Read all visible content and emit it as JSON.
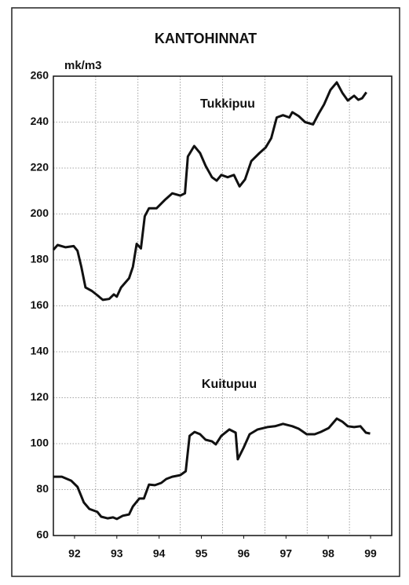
{
  "chart_data": {
    "type": "line",
    "title": "KANTOHINNAT",
    "y_label": "mk/m3",
    "xlim": [
      1992,
      2000
    ],
    "xticks": [
      {
        "value": 1992.5,
        "label": "92"
      },
      {
        "value": 1993.5,
        "label": "93"
      },
      {
        "value": 1994.5,
        "label": "94"
      },
      {
        "value": 1995.5,
        "label": "95"
      },
      {
        "value": 1996.5,
        "label": "96"
      },
      {
        "value": 1997.5,
        "label": "97"
      },
      {
        "value": 1998.5,
        "label": "98"
      },
      {
        "value": 1999.5,
        "label": "99"
      }
    ],
    "ylim": [
      60,
      260
    ],
    "yticks": [
      60,
      80,
      100,
      120,
      140,
      160,
      180,
      200,
      220,
      240,
      260
    ],
    "grid": true,
    "series": [
      {
        "name": "Tukkipuu",
        "color": "#111111",
        "x": [
          1992.0,
          1992.1,
          1992.29,
          1992.48,
          1992.57,
          1992.66,
          1992.76,
          1992.91,
          1993.04,
          1993.17,
          1993.32,
          1993.43,
          1993.5,
          1993.6,
          1993.79,
          1993.88,
          1993.97,
          1994.07,
          1994.16,
          1994.26,
          1994.44,
          1994.63,
          1994.81,
          1995.0,
          1995.11,
          1995.18,
          1995.33,
          1995.47,
          1995.6,
          1995.75,
          1995.86,
          1995.97,
          1996.12,
          1996.27,
          1996.4,
          1996.53,
          1996.68,
          1996.87,
          1997.02,
          1997.15,
          1997.28,
          1997.43,
          1997.58,
          1997.65,
          1997.8,
          1997.95,
          1998.14,
          1998.27,
          1998.4,
          1998.55,
          1998.7,
          1998.83,
          1998.96,
          1999.11,
          1999.21,
          1999.3,
          1999.4
        ],
        "values": [
          184.4,
          186.5,
          185.5,
          186,
          184,
          177,
          168,
          166.5,
          164.6,
          162.6,
          163,
          165,
          164,
          168,
          172,
          177,
          187,
          185,
          199,
          202.5,
          202.5,
          206,
          209,
          208,
          209,
          225,
          229.6,
          226.5,
          221,
          216,
          214.5,
          217,
          216,
          217,
          212,
          215,
          223,
          226.5,
          229,
          233,
          242,
          243,
          242,
          244.3,
          242.6,
          240,
          239,
          243.6,
          247.7,
          254,
          257.3,
          252.8,
          249.4,
          251.5,
          249.7,
          250.4,
          253
        ]
      },
      {
        "name": "Kuitupuu",
        "color": "#111111",
        "x": [
          1992.0,
          1992.2,
          1992.42,
          1992.57,
          1992.72,
          1992.85,
          1993.04,
          1993.13,
          1993.28,
          1993.41,
          1993.5,
          1993.64,
          1993.79,
          1993.88,
          1994.03,
          1994.14,
          1994.26,
          1994.4,
          1994.55,
          1994.67,
          1994.81,
          1995.0,
          1995.13,
          1995.22,
          1995.34,
          1995.47,
          1995.6,
          1995.75,
          1995.84,
          1995.97,
          1996.16,
          1996.31,
          1996.36,
          1996.5,
          1996.64,
          1996.83,
          1997.06,
          1997.24,
          1997.43,
          1997.65,
          1997.8,
          1997.99,
          1998.18,
          1998.32,
          1998.51,
          1998.7,
          1998.83,
          1998.96,
          1999.11,
          1999.26,
          1999.39,
          1999.49
        ],
        "values": [
          85.6,
          85.6,
          83.9,
          81.2,
          74.4,
          71.6,
          70.3,
          68.2,
          67.5,
          67.9,
          67.2,
          68.6,
          69.2,
          72.7,
          76.1,
          76.1,
          82.2,
          81.9,
          82.9,
          84.6,
          85.6,
          86.3,
          88,
          103.4,
          105.1,
          104.1,
          101.7,
          101,
          99.7,
          103.4,
          106.2,
          104.8,
          93.2,
          98.3,
          104.1,
          106.2,
          107.2,
          107.6,
          108.6,
          107.6,
          106.5,
          104.1,
          104.1,
          105.1,
          106.8,
          110.9,
          109.6,
          107.6,
          107.2,
          107.6,
          104.8,
          104.4
        ]
      }
    ]
  }
}
